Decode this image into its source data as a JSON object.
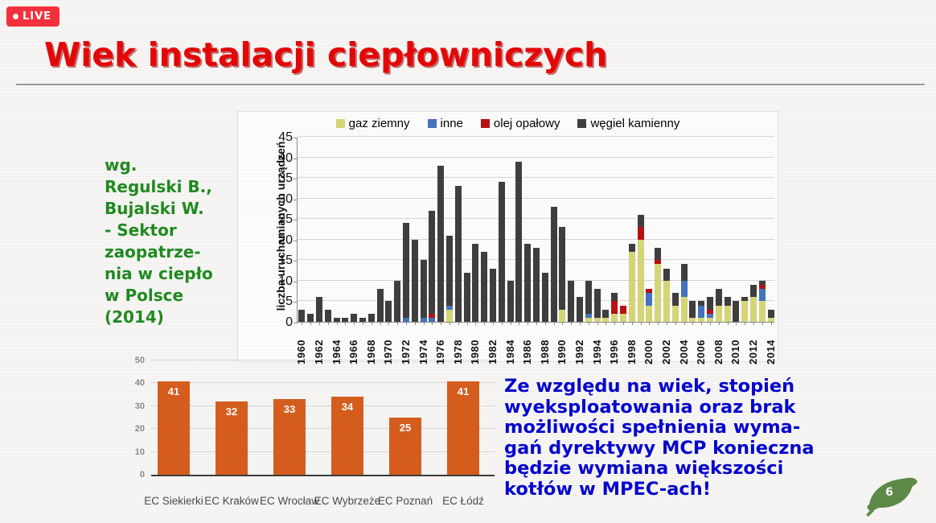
{
  "live_badge": {
    "label": "LIVE"
  },
  "title": "Wiek instalacji ciepłowniczych",
  "source_note": {
    "lines": [
      "wg.",
      "Regulski B.,",
      "Bujalski W.",
      "- Sektor",
      "zaopatrze-",
      "nia w ciepło",
      "w Polsce",
      "(2014)"
    ],
    "color": "#1f8a1f"
  },
  "conclusion": {
    "lines": [
      "Ze względu na wiek, stopień",
      "wyeksploatowania oraz brak",
      "możliwości spełnienia wyma-",
      "gań dyrektywy MCP konieczna",
      "będzie wymiana większości",
      "kotłów w MPEC-ach!"
    ],
    "color": "#0404cf"
  },
  "page_number": "6",
  "page_leaf_color": "#5d8a47",
  "chart_data": [
    {
      "id": "commissioning-by-year",
      "type": "bar",
      "stacked": true,
      "title": "",
      "xlabel": "",
      "ylabel": "liczba uruchamianych urządzeń",
      "ylim": [
        0,
        45
      ],
      "ytick_step": 5,
      "grid": true,
      "legend_position": "top",
      "x_start": 1960,
      "x_end": 2014,
      "xtick_every": 2,
      "series": [
        {
          "name": "gaz ziemny",
          "color": "#d6d678",
          "values": [
            0,
            0,
            0,
            0,
            0,
            0,
            0,
            0,
            0,
            0,
            0,
            0,
            0,
            0,
            0,
            0,
            0,
            3,
            0,
            0,
            0,
            0,
            0,
            0,
            0,
            0,
            0,
            0,
            0,
            0,
            3,
            0,
            0,
            1,
            1,
            1,
            2,
            2,
            17,
            20,
            4,
            14,
            10,
            4,
            6,
            1,
            1,
            1,
            4,
            4,
            0,
            5,
            6,
            5,
            1
          ]
        },
        {
          "name": "inne",
          "color": "#4472bc",
          "values": [
            0,
            0,
            0,
            0,
            0,
            0,
            0,
            0,
            0,
            0,
            0,
            0,
            1,
            0,
            1,
            1,
            0,
            1,
            0,
            0,
            0,
            0,
            0,
            0,
            0,
            0,
            0,
            0,
            0,
            0,
            0,
            0,
            0,
            1,
            0,
            0,
            0,
            0,
            0,
            0,
            3,
            0,
            0,
            0,
            4,
            0,
            3,
            1,
            0,
            0,
            0,
            0,
            0,
            3,
            0
          ]
        },
        {
          "name": "olej opałowy",
          "color": "#b90f0f",
          "values": [
            0,
            0,
            0,
            0,
            0,
            0,
            0,
            0,
            0,
            0,
            0,
            0,
            0,
            0,
            0,
            1,
            0,
            0,
            0,
            0,
            0,
            0,
            0,
            0,
            0,
            0,
            0,
            0,
            0,
            0,
            0,
            0,
            0,
            0,
            0,
            0,
            3,
            2,
            0,
            3,
            1,
            1,
            0,
            0,
            0,
            0,
            0,
            1,
            0,
            0,
            0,
            0,
            0,
            1,
            0
          ]
        },
        {
          "name": "węgiel kamienny",
          "color": "#3d3d3d",
          "values": [
            3,
            2,
            6,
            3,
            1,
            1,
            2,
            1,
            2,
            8,
            5,
            10,
            23,
            20,
            14,
            25,
            38,
            17,
            33,
            12,
            19,
            17,
            13,
            34,
            10,
            39,
            19,
            18,
            12,
            28,
            20,
            10,
            6,
            8,
            7,
            2,
            2,
            0,
            2,
            3,
            0,
            3,
            3,
            3,
            4,
            4,
            1,
            3,
            4,
            2,
            5,
            1,
            3,
            1,
            2
          ]
        }
      ]
    },
    {
      "id": "ec-plant-age",
      "type": "bar",
      "categories": [
        "EC Siekierki",
        "EC Kraków",
        "EC Wrocław",
        "EC Wybrzeże",
        "EC Poznań",
        "EC Łódź"
      ],
      "values": [
        41,
        32,
        33,
        34,
        25,
        41
      ],
      "bar_color": "#d65c1c",
      "ylim": [
        0,
        50
      ],
      "ytick_step": 10,
      "grid": "dotted",
      "value_labels": true
    }
  ]
}
